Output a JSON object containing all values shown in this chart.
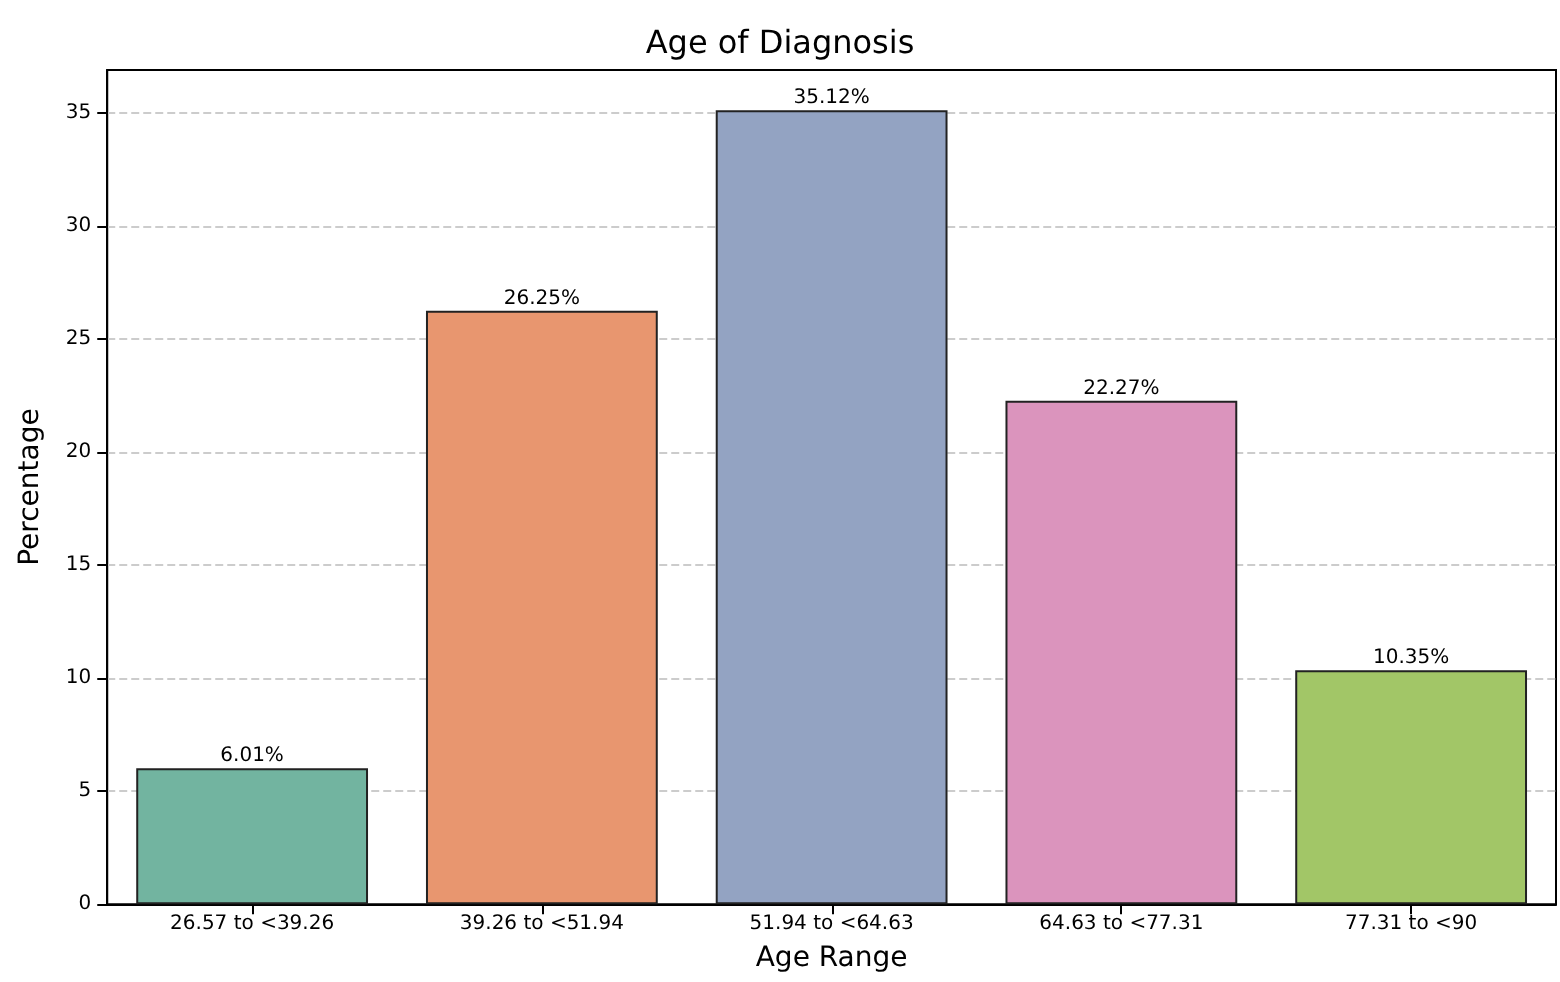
{
  "chart_data": {
    "type": "bar",
    "title": "Age of Diagnosis",
    "xlabel": "Age Range",
    "ylabel": "Percentage",
    "categories": [
      "26.57 to <39.26",
      "39.26 to <51.94",
      "51.94 to <64.63",
      "64.63 to <77.31",
      "77.31 to <90"
    ],
    "values": [
      6.01,
      26.25,
      35.12,
      22.27,
      10.35
    ],
    "colors": [
      "#72b4a0",
      "#e8966f",
      "#93a3c2",
      "#db94bd",
      "#a2c667"
    ],
    "value_labels": [
      "6.01%",
      "26.25%",
      "35.12%",
      "22.27%",
      "10.35%"
    ],
    "ylim": [
      0,
      36.9
    ],
    "yticks": [
      0,
      5,
      10,
      15,
      20,
      25,
      30,
      35
    ],
    "grid": "y"
  }
}
